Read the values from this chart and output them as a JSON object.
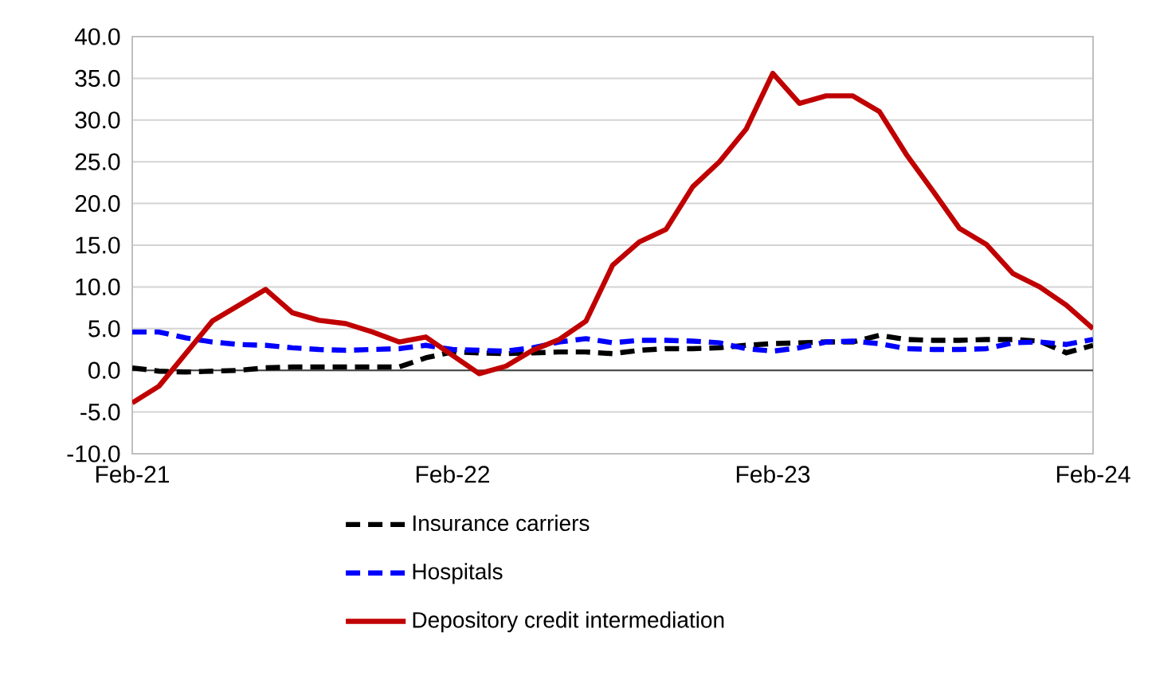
{
  "chart_data": {
    "type": "line",
    "x": [
      "2021-02",
      "2021-03",
      "2021-04",
      "2021-05",
      "2021-06",
      "2021-07",
      "2021-08",
      "2021-09",
      "2021-10",
      "2021-11",
      "2021-12",
      "2022-01",
      "2022-02",
      "2022-03",
      "2022-04",
      "2022-05",
      "2022-06",
      "2022-07",
      "2022-08",
      "2022-09",
      "2022-10",
      "2022-11",
      "2022-12",
      "2023-01",
      "2023-02",
      "2023-03",
      "2023-04",
      "2023-05",
      "2023-06",
      "2023-07",
      "2023-08",
      "2023-09",
      "2023-10",
      "2023-11",
      "2023-12",
      "2024-01",
      "2024-02"
    ],
    "series": [
      {
        "name": "Insurance carriers",
        "color": "#000000",
        "line_style": "dashed",
        "values": [
          0.3,
          -0.1,
          -0.2,
          -0.1,
          0.0,
          0.3,
          0.4,
          0.4,
          0.4,
          0.4,
          0.4,
          1.5,
          2.2,
          2.1,
          2.0,
          2.1,
          2.2,
          2.2,
          2.0,
          2.4,
          2.6,
          2.6,
          2.7,
          3.0,
          3.2,
          3.3,
          3.4,
          3.4,
          4.2,
          3.7,
          3.6,
          3.6,
          3.7,
          3.7,
          3.5,
          2.1,
          3.0
        ]
      },
      {
        "name": "Hospitals",
        "color": "#0000ff",
        "line_style": "dashed",
        "values": [
          4.6,
          4.6,
          3.9,
          3.4,
          3.1,
          3.0,
          2.7,
          2.5,
          2.4,
          2.5,
          2.6,
          3.0,
          2.5,
          2.4,
          2.3,
          2.7,
          3.4,
          3.8,
          3.3,
          3.6,
          3.6,
          3.5,
          3.3,
          2.6,
          2.3,
          2.7,
          3.4,
          3.5,
          3.2,
          2.6,
          2.5,
          2.5,
          2.6,
          3.3,
          3.4,
          3.1,
          3.7
        ]
      },
      {
        "name": "Depository credit intermediation",
        "color": "#c00000",
        "line_style": "solid",
        "values": [
          -3.9,
          -1.9,
          2.0,
          5.9,
          7.8,
          9.7,
          6.9,
          6.0,
          5.6,
          4.6,
          3.4,
          4.0,
          1.8,
          -0.4,
          0.5,
          2.4,
          3.7,
          5.9,
          12.6,
          15.4,
          16.9,
          22.0,
          25.0,
          28.9,
          35.6,
          32.0,
          32.9,
          32.9,
          31.0,
          25.9,
          21.5,
          17.0,
          15.1,
          11.6,
          10.0,
          7.8,
          5.0
        ]
      }
    ],
    "xlim": [
      "2021-02",
      "2024-02"
    ],
    "xticks": [
      {
        "value": "2021-02",
        "label": "Feb-21"
      },
      {
        "value": "2022-02",
        "label": "Feb-22"
      },
      {
        "value": "2023-02",
        "label": "Feb-23"
      },
      {
        "value": "2024-02",
        "label": "Feb-24"
      }
    ],
    "ylim": [
      -10,
      40
    ],
    "yticks": [
      {
        "value": -10,
        "label": "-10.0"
      },
      {
        "value": -5,
        "label": "-5.0"
      },
      {
        "value": 0,
        "label": "0.0"
      },
      {
        "value": 5,
        "label": "5.0"
      },
      {
        "value": 10,
        "label": "10.0"
      },
      {
        "value": 15,
        "label": "15.0"
      },
      {
        "value": 20,
        "label": "20.0"
      },
      {
        "value": 25,
        "label": "25.0"
      },
      {
        "value": 30,
        "label": "30.0"
      },
      {
        "value": 35,
        "label": "35.0"
      },
      {
        "value": 40,
        "label": "40.0"
      }
    ],
    "ref_lines": [
      {
        "axis": "y",
        "value": 0,
        "color": "#404040"
      }
    ],
    "grid": "y",
    "legend": "bottom"
  }
}
